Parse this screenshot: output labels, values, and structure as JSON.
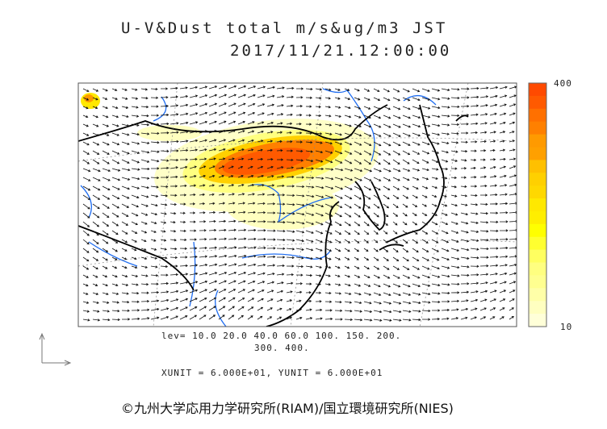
{
  "title": {
    "line1": "U-V&Dust total m/s&ug/m3 JST",
    "line2": "2017/11/21.12:00:00"
  },
  "colorbar": {
    "max_label": "400",
    "min_label": "10",
    "colors": [
      "#ff4a00",
      "#ff5a00",
      "#ff7000",
      "#ff8000",
      "#ff9a00",
      "#ffa000",
      "#ffc000",
      "#ffd000",
      "#ffd800",
      "#ffe800",
      "#ffee00",
      "#ffff00",
      "#ffff30",
      "#ffff60",
      "#ffff80",
      "#ffff90",
      "#ffffa8",
      "#ffffc0",
      "#ffffd8"
    ]
  },
  "levels": {
    "line1": "lev= 10.0 20.0 40.0 60.0 100. 150. 200.",
    "line2": "300. 400."
  },
  "units": "XUNIT = 6.000E+01, YUNIT = 6.000E+01",
  "copyright": "©九州大学応用力学研究所(RIAM)/国立環境研究所(NIES)"
}
